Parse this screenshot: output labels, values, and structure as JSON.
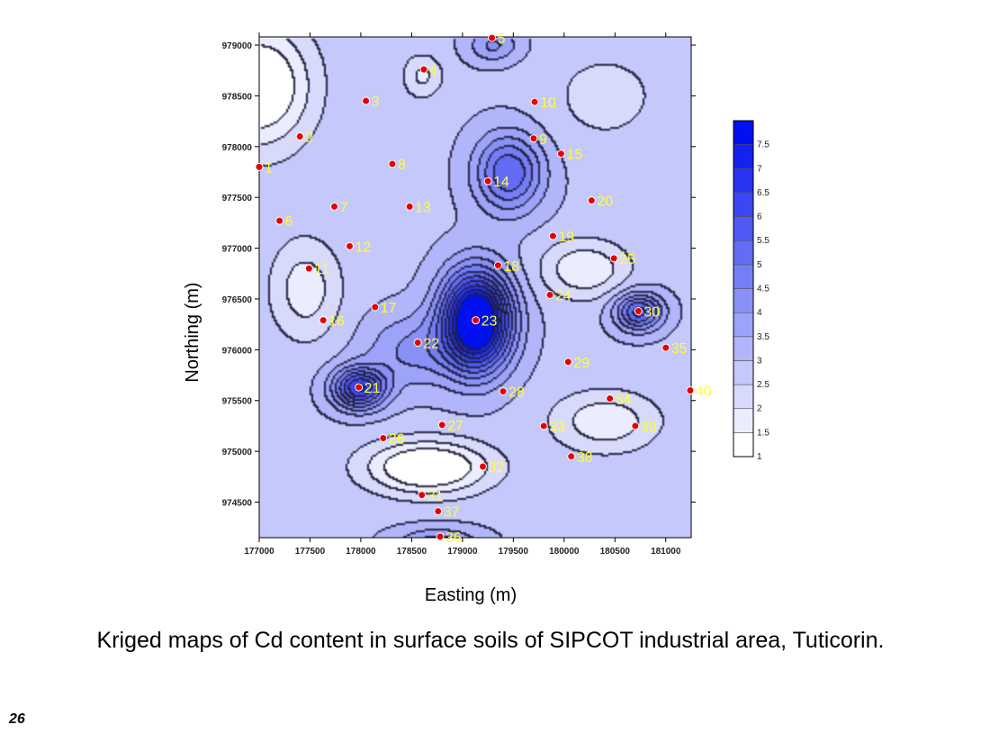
{
  "chart_data": {
    "type": "contour",
    "xlabel": "Easting (m)",
    "ylabel": "Northing (m)",
    "xlim": [
      177000,
      181250
    ],
    "ylim": [
      974150,
      979080
    ],
    "x_ticks": [
      "177000",
      "177500",
      "178000",
      "178500",
      "179000",
      "179500",
      "180000",
      "180500",
      "181000"
    ],
    "y_ticks": [
      "974500",
      "975000",
      "975500",
      "976000",
      "976500",
      "977000",
      "977500",
      "978000",
      "978500",
      "979000"
    ],
    "colorbar": {
      "min": 1,
      "max": 8,
      "ticks": [
        "1",
        "1.5",
        "2",
        "2.5",
        "3",
        "3.5",
        "4",
        "4.5",
        "5",
        "5.5",
        "6",
        "6.5",
        "7",
        "7.5"
      ],
      "color_low": "#ffffff",
      "color_high": "#0010ee"
    },
    "sites": [
      {
        "label": "1",
        "x": 177000,
        "y": 977800
      },
      {
        "label": "2",
        "x": 177400,
        "y": 978100
      },
      {
        "label": "3",
        "x": 178050,
        "y": 978450
      },
      {
        "label": "4",
        "x": 178620,
        "y": 978760
      },
      {
        "label": "5",
        "x": 179290,
        "y": 979070
      },
      {
        "label": "6",
        "x": 177200,
        "y": 977270
      },
      {
        "label": "7",
        "x": 177740,
        "y": 977410
      },
      {
        "label": "8",
        "x": 178310,
        "y": 977830
      },
      {
        "label": "9",
        "x": 179700,
        "y": 978080
      },
      {
        "label": "10",
        "x": 179710,
        "y": 978440
      },
      {
        "label": "11",
        "x": 177490,
        "y": 976800
      },
      {
        "label": "12",
        "x": 177890,
        "y": 977020
      },
      {
        "label": "13",
        "x": 178480,
        "y": 977410
      },
      {
        "label": "14",
        "x": 179250,
        "y": 977660
      },
      {
        "label": "15",
        "x": 179970,
        "y": 977930
      },
      {
        "label": "16",
        "x": 177630,
        "y": 976290
      },
      {
        "label": "17",
        "x": 178140,
        "y": 976420
      },
      {
        "label": "18",
        "x": 179350,
        "y": 976830
      },
      {
        "label": "19",
        "x": 179890,
        "y": 977120
      },
      {
        "label": "20",
        "x": 180270,
        "y": 977470
      },
      {
        "label": "21",
        "x": 177980,
        "y": 975630
      },
      {
        "label": "22",
        "x": 178560,
        "y": 976070
      },
      {
        "label": "23",
        "x": 179130,
        "y": 976290
      },
      {
        "label": "24",
        "x": 179860,
        "y": 976540
      },
      {
        "label": "25",
        "x": 180490,
        "y": 976900
      },
      {
        "label": "26",
        "x": 178220,
        "y": 975130
      },
      {
        "label": "27",
        "x": 178800,
        "y": 975260
      },
      {
        "label": "28",
        "x": 179400,
        "y": 975590
      },
      {
        "label": "29",
        "x": 180040,
        "y": 975880
      },
      {
        "label": "30",
        "x": 180730,
        "y": 976380
      },
      {
        "label": "31",
        "x": 178600,
        "y": 974570
      },
      {
        "label": "32",
        "x": 179200,
        "y": 974850
      },
      {
        "label": "33",
        "x": 179800,
        "y": 975250
      },
      {
        "label": "34",
        "x": 180450,
        "y": 975520
      },
      {
        "label": "35",
        "x": 181000,
        "y": 976020
      },
      {
        "label": "36",
        "x": 178780,
        "y": 974160
      },
      {
        "label": "37",
        "x": 178760,
        "y": 974410
      },
      {
        "label": "38",
        "x": 180070,
        "y": 974950
      },
      {
        "label": "39",
        "x": 180700,
        "y": 975250
      },
      {
        "label": "40",
        "x": 181240,
        "y": 975600
      }
    ],
    "surface_features": [
      {
        "x": 179130,
        "y": 976290,
        "amp": 6.3,
        "sx": 330,
        "sy": 470
      },
      {
        "x": 177980,
        "y": 975630,
        "amp": 3.6,
        "sx": 260,
        "sy": 200
      },
      {
        "x": 179450,
        "y": 977750,
        "amp": 2.6,
        "sx": 330,
        "sy": 380
      },
      {
        "x": 180730,
        "y": 976380,
        "amp": 2.8,
        "sx": 230,
        "sy": 180
      },
      {
        "x": 178500,
        "y": 976000,
        "amp": 1.2,
        "sx": 450,
        "sy": 350
      },
      {
        "x": 177000,
        "y": 978600,
        "amp": -2.2,
        "sx": 500,
        "sy": 600
      },
      {
        "x": 177450,
        "y": 976600,
        "amp": -1.2,
        "sx": 350,
        "sy": 500
      },
      {
        "x": 178650,
        "y": 974850,
        "amp": -2.3,
        "sx": 600,
        "sy": 260
      },
      {
        "x": 180400,
        "y": 975300,
        "amp": -1.3,
        "sx": 520,
        "sy": 300
      },
      {
        "x": 180200,
        "y": 976800,
        "amp": -1.4,
        "sx": 420,
        "sy": 280
      },
      {
        "x": 178600,
        "y": 978700,
        "amp": -1.0,
        "sx": 200,
        "sy": 220
      },
      {
        "x": 180400,
        "y": 978500,
        "amp": -0.6,
        "sx": 600,
        "sy": 500
      },
      {
        "x": 178750,
        "y": 974100,
        "amp": 1.4,
        "sx": 400,
        "sy": 150
      },
      {
        "x": 179300,
        "y": 979000,
        "amp": 1.2,
        "sx": 250,
        "sy": 160
      }
    ]
  },
  "caption": "Kriged maps of Cd content in surface soils of SIPCOT industrial area, Tuticorin.",
  "page_number": "26"
}
